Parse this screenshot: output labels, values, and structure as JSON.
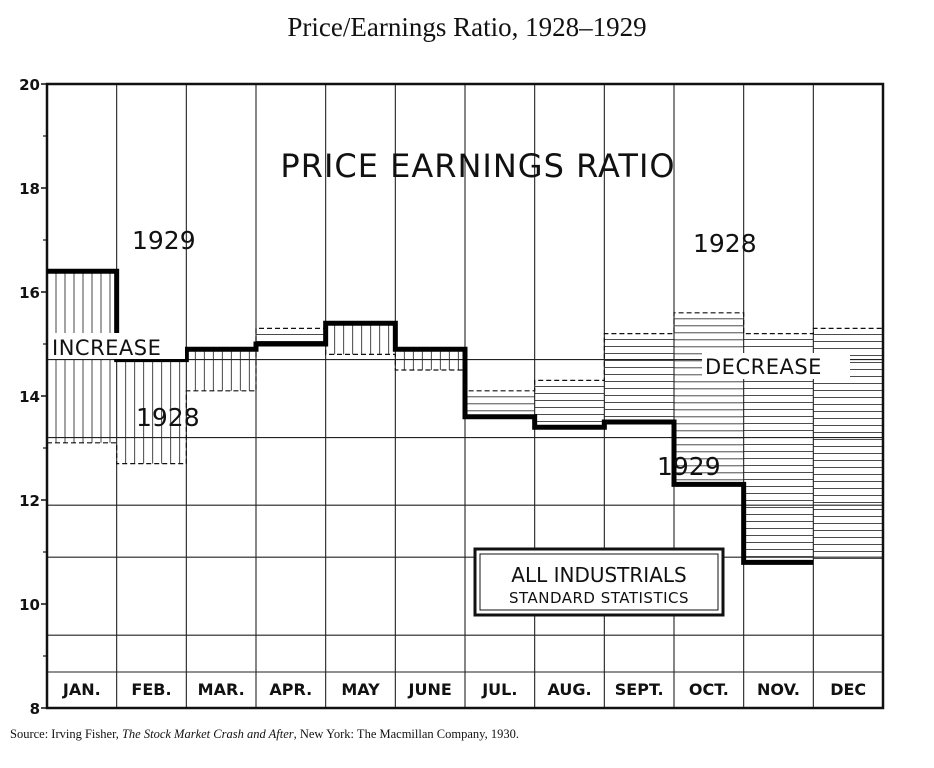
{
  "header": {
    "title": "Price/Earnings Ratio, 1928–1929"
  },
  "source": {
    "prefix": "Source: Irving Fisher, ",
    "book": "The Stock Market Crash and After",
    "suffix": ", New York: The Macmillan Company, 1930."
  },
  "chart_data": {
    "type": "line",
    "step": true,
    "title": "PRICE EARNINGS RATIO",
    "categories": [
      "JAN.",
      "FEB.",
      "MAR.",
      "APR.",
      "MAY",
      "JUNE",
      "JUL.",
      "AUG.",
      "SEPT.",
      "OCT.",
      "NOV.",
      "DEC"
    ],
    "ylim": [
      8,
      20
    ],
    "yticks": [
      8,
      10,
      12,
      14,
      16,
      18,
      20
    ],
    "grid": true,
    "series": [
      {
        "name": "1929",
        "values": [
          16.4,
          14.7,
          14.9,
          15.0,
          15.4,
          14.9,
          13.6,
          13.4,
          13.5,
          12.3,
          10.8,
          null
        ],
        "color": "#111111",
        "style": "thick-solid"
      },
      {
        "name": "1928",
        "values": [
          13.1,
          12.7,
          14.1,
          15.3,
          14.8,
          14.5,
          14.1,
          14.3,
          15.2,
          15.6,
          15.2,
          15.3
        ],
        "color": "#111111",
        "style": "dashed"
      }
    ],
    "annotations": {
      "label_1929_top": "1929",
      "label_1928_low": "1928",
      "label_1928_high": "1928",
      "label_1929_low": "1929",
      "increase": "INCREASE",
      "decrease": "DECREASE",
      "box_line1": "ALL INDUSTRIALS",
      "box_line2": "STANDARD STATISTICS"
    }
  }
}
